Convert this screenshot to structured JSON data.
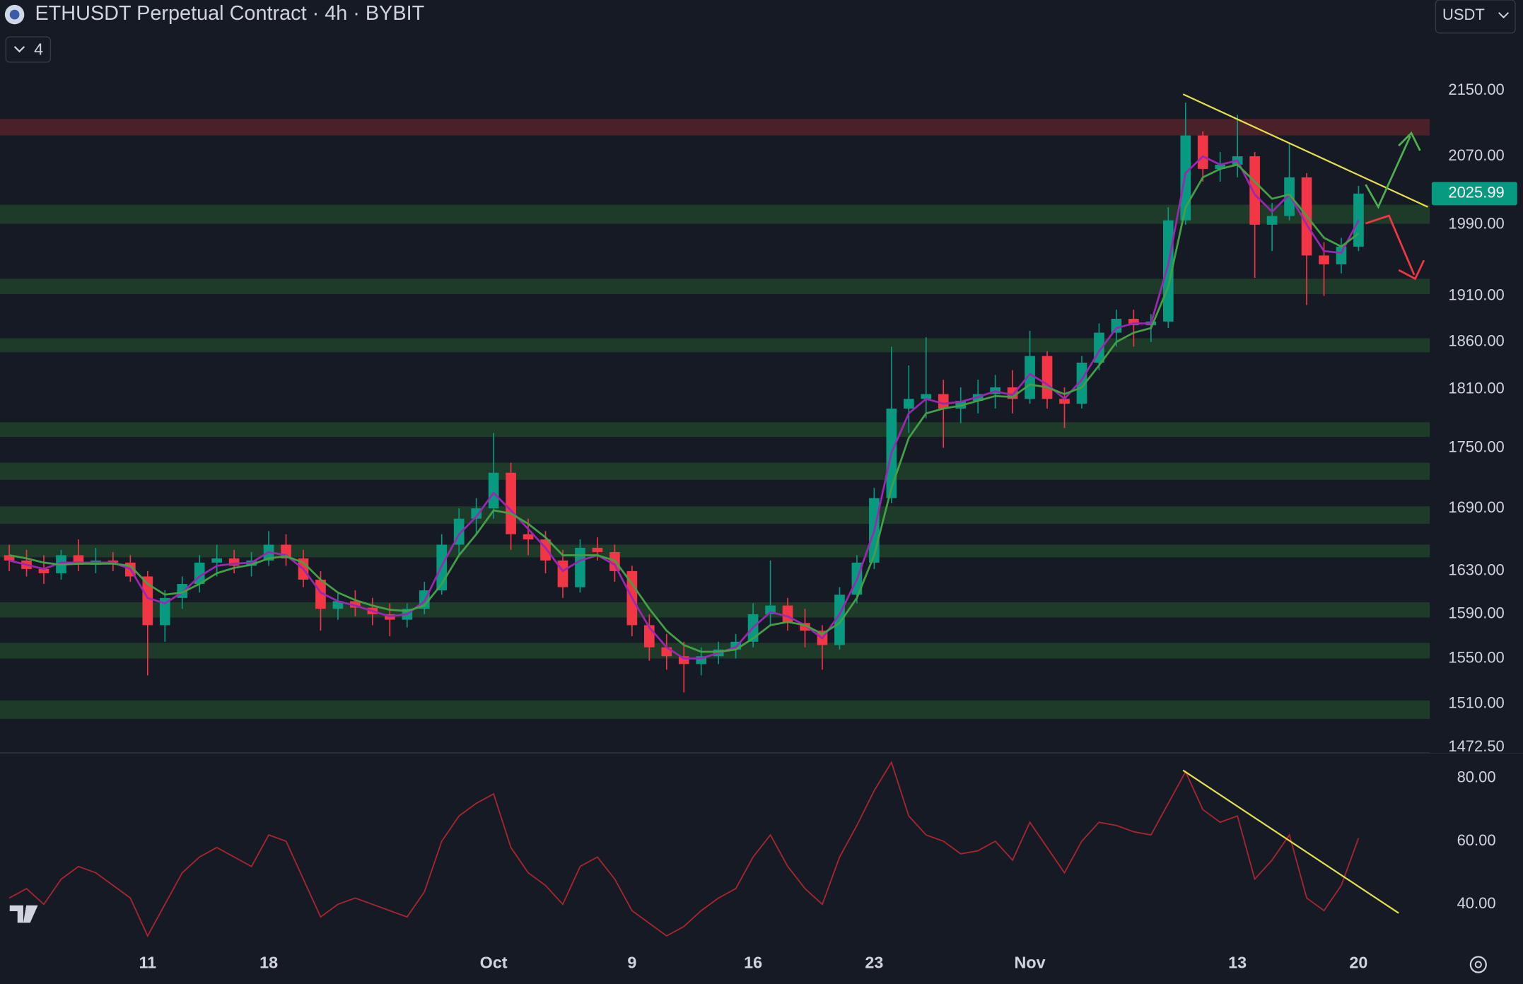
{
  "header": {
    "title": "ETHUSDT Perpetual Contract · 4h · BYBIT",
    "indicators": "4",
    "currency": "USDT"
  },
  "chart_data": [
    {
      "type": "candlestick",
      "log_scale": true,
      "grid": false,
      "up_color": "#089981",
      "down_color": "#f23645",
      "categories": [
        null,
        null,
        null,
        null,
        null,
        null,
        null,
        null,
        "11",
        null,
        null,
        null,
        null,
        null,
        null,
        "18",
        null,
        null,
        null,
        null,
        null,
        null,
        null,
        null,
        null,
        null,
        null,
        null,
        "Oct",
        null,
        null,
        null,
        null,
        null,
        null,
        null,
        "9",
        null,
        null,
        null,
        null,
        null,
        null,
        "16",
        null,
        null,
        null,
        null,
        null,
        null,
        "23",
        null,
        null,
        null,
        null,
        null,
        null,
        null,
        null,
        "Nov",
        null,
        null,
        null,
        null,
        null,
        null,
        null,
        null,
        null,
        null,
        null,
        "13",
        null,
        null,
        null,
        null,
        null,
        null,
        "20"
      ],
      "open": [
        1645,
        1640,
        1632,
        1628,
        1645,
        1636,
        1640,
        1638,
        1625,
        1580,
        1605,
        1618,
        1638,
        1642,
        1635,
        1640,
        1655,
        1642,
        1622,
        1595,
        1602,
        1596,
        1590,
        1585,
        1595,
        1612,
        1655,
        1680,
        1690,
        1725,
        1665,
        1660,
        1640,
        1615,
        1652,
        1648,
        1630,
        1580,
        1560,
        1552,
        1545,
        1552,
        1558,
        1565,
        1590,
        1598,
        1582,
        1575,
        1562,
        1608,
        1638,
        1700,
        1790,
        1800,
        1805,
        1790,
        1798,
        1805,
        1812,
        1800,
        1845,
        1800,
        1795,
        1838,
        1870,
        1885,
        1878,
        1882,
        1995,
        2095,
        2055,
        2060,
        2070,
        1990,
        2000,
        2045,
        1955,
        1945,
        1965
      ],
      "high": [
        1655,
        1650,
        1645,
        1650,
        1660,
        1652,
        1648,
        1645,
        1630,
        1612,
        1625,
        1645,
        1655,
        1650,
        1648,
        1668,
        1665,
        1650,
        1630,
        1610,
        1612,
        1605,
        1600,
        1600,
        1620,
        1665,
        1690,
        1700,
        1765,
        1735,
        1680,
        1668,
        1650,
        1660,
        1662,
        1655,
        1635,
        1590,
        1572,
        1565,
        1560,
        1565,
        1572,
        1600,
        1640,
        1605,
        1595,
        1580,
        1615,
        1645,
        1710,
        1855,
        1835,
        1865,
        1820,
        1812,
        1820,
        1825,
        1830,
        1872,
        1850,
        1812,
        1845,
        1880,
        1895,
        1895,
        1890,
        2010,
        2135,
        2100,
        2075,
        2120,
        2075,
        2015,
        2085,
        2050,
        1970,
        1975,
        2035
      ],
      "low": [
        1630,
        1625,
        1618,
        1622,
        1630,
        1628,
        1630,
        1620,
        1535,
        1565,
        1595,
        1610,
        1625,
        1628,
        1625,
        1635,
        1635,
        1615,
        1575,
        1585,
        1588,
        1580,
        1570,
        1578,
        1590,
        1608,
        1645,
        1665,
        1680,
        1650,
        1645,
        1628,
        1605,
        1610,
        1640,
        1620,
        1570,
        1548,
        1540,
        1520,
        1535,
        1545,
        1550,
        1560,
        1580,
        1575,
        1560,
        1540,
        1558,
        1600,
        1632,
        1695,
        1765,
        1780,
        1750,
        1775,
        1785,
        1790,
        1785,
        1795,
        1790,
        1770,
        1790,
        1830,
        1855,
        1855,
        1860,
        1875,
        1990,
        2040,
        2040,
        2045,
        1930,
        1960,
        1995,
        1900,
        1910,
        1935,
        1960
      ],
      "close": [
        1640,
        1632,
        1628,
        1645,
        1636,
        1640,
        1638,
        1625,
        1580,
        1605,
        1618,
        1638,
        1642,
        1635,
        1640,
        1655,
        1642,
        1622,
        1595,
        1602,
        1596,
        1590,
        1585,
        1595,
        1612,
        1655,
        1680,
        1690,
        1725,
        1665,
        1660,
        1640,
        1615,
        1652,
        1648,
        1630,
        1580,
        1560,
        1552,
        1545,
        1552,
        1558,
        1565,
        1590,
        1598,
        1582,
        1575,
        1562,
        1608,
        1638,
        1700,
        1790,
        1800,
        1805,
        1790,
        1798,
        1805,
        1812,
        1800,
        1845,
        1800,
        1795,
        1838,
        1870,
        1885,
        1878,
        1882,
        1995,
        2095,
        2055,
        2060,
        2070,
        1990,
        2000,
        2045,
        1955,
        1945,
        1965,
        2025.99
      ],
      "series": [
        {
          "color": "#9c27b0",
          "values": [
            1640,
            1636,
            1632,
            1638,
            1638,
            1638,
            1638,
            1632,
            1605,
            1600,
            1610,
            1625,
            1635,
            1637,
            1638,
            1648,
            1645,
            1632,
            1610,
            1602,
            1598,
            1593,
            1588,
            1590,
            1602,
            1635,
            1665,
            1682,
            1705,
            1688,
            1670,
            1652,
            1630,
            1640,
            1645,
            1636,
            1605,
            1578,
            1560,
            1550,
            1550,
            1555,
            1560,
            1578,
            1592,
            1588,
            1580,
            1568,
            1590,
            1622,
            1668,
            1745,
            1785,
            1800,
            1795,
            1797,
            1802,
            1808,
            1804,
            1826,
            1815,
            1800,
            1820,
            1850,
            1875,
            1880,
            1880,
            1945,
            2050,
            2070,
            2060,
            2065,
            2025,
            2005,
            2025,
            1990,
            1960,
            1958,
            1995
          ]
        },
        {
          "color": "#43a047",
          "values": [
            1645,
            1642,
            1638,
            1636,
            1637,
            1637,
            1637,
            1635,
            1618,
            1608,
            1610,
            1618,
            1628,
            1633,
            1636,
            1642,
            1644,
            1638,
            1622,
            1610,
            1603,
            1598,
            1594,
            1593,
            1598,
            1618,
            1645,
            1665,
            1688,
            1685,
            1675,
            1662,
            1645,
            1645,
            1645,
            1640,
            1618,
            1595,
            1575,
            1562,
            1556,
            1556,
            1558,
            1568,
            1580,
            1583,
            1580,
            1572,
            1582,
            1605,
            1645,
            1710,
            1760,
            1785,
            1790,
            1793,
            1798,
            1803,
            1802,
            1815,
            1812,
            1805,
            1812,
            1835,
            1860,
            1870,
            1875,
            1920,
            2010,
            2045,
            2055,
            2060,
            2040,
            2020,
            2025,
            2000,
            1975,
            1965,
            1980
          ]
        }
      ],
      "zones": [
        {
          "range": [
            2095,
            2115
          ],
          "color": "#4a2129"
        },
        {
          "range": [
            1991,
            2013
          ],
          "color": "#1e3b2a"
        },
        {
          "range": [
            1912,
            1929
          ],
          "color": "#1e3b2a"
        },
        {
          "range": [
            1849,
            1864
          ],
          "color": "#1e3b2a"
        },
        {
          "range": [
            1761,
            1776
          ],
          "color": "#1e3b2a"
        },
        {
          "range": [
            1718,
            1735
          ],
          "color": "#1e3b2a"
        },
        {
          "range": [
            1675,
            1692
          ],
          "color": "#1e3b2a"
        },
        {
          "range": [
            1643,
            1655
          ],
          "color": "#1e3b2a"
        },
        {
          "range": [
            1587,
            1601
          ],
          "color": "#1e3b2a"
        },
        {
          "range": [
            1550,
            1564
          ],
          "color": "#1e3b2a"
        },
        {
          "range": [
            1497,
            1513
          ],
          "color": "#1e3b2a"
        }
      ],
      "ylim": [
        1468,
        2265
      ],
      "yticks": [
        {
          "value": 2150,
          "label": "2150.00"
        },
        {
          "value": 2070,
          "label": "2070.00"
        },
        {
          "value": 1990,
          "label": "1990.00"
        },
        {
          "value": 1910,
          "label": "1910.00"
        },
        {
          "value": 1860,
          "label": "1860.00"
        },
        {
          "value": 1810,
          "label": "1810.00"
        },
        {
          "value": 1750,
          "label": "1750.00"
        },
        {
          "value": 1690,
          "label": "1690.00"
        },
        {
          "value": 1630,
          "label": "1630.00"
        },
        {
          "value": 1590,
          "label": "1590.00"
        },
        {
          "value": 1550,
          "label": "1550.00"
        },
        {
          "value": 1510,
          "label": "1510.00"
        },
        {
          "value": 1472.5,
          "label": "1472.50"
        }
      ]
    },
    {
      "type": "line",
      "color": "#a8262f",
      "values": [
        42,
        45,
        40,
        48,
        52,
        50,
        46,
        42,
        30,
        40,
        50,
        55,
        58,
        55,
        52,
        62,
        60,
        48,
        36,
        40,
        42,
        40,
        38,
        36,
        44,
        60,
        68,
        72,
        75,
        58,
        50,
        46,
        40,
        52,
        55,
        48,
        38,
        34,
        30,
        33,
        38,
        42,
        45,
        55,
        62,
        52,
        45,
        40,
        55,
        65,
        76,
        85,
        68,
        62,
        60,
        56,
        57,
        60,
        54,
        66,
        58,
        50,
        60,
        66,
        65,
        63,
        62,
        72,
        82,
        70,
        66,
        68,
        48,
        54,
        62,
        42,
        38,
        46,
        61
      ],
      "ylim": [
        28,
        88
      ],
      "yticks": [
        {
          "value": 80,
          "label": "80.00"
        },
        {
          "value": 60,
          "label": "60.00"
        },
        {
          "value": 40,
          "label": "40.00"
        }
      ]
    }
  ]
}
